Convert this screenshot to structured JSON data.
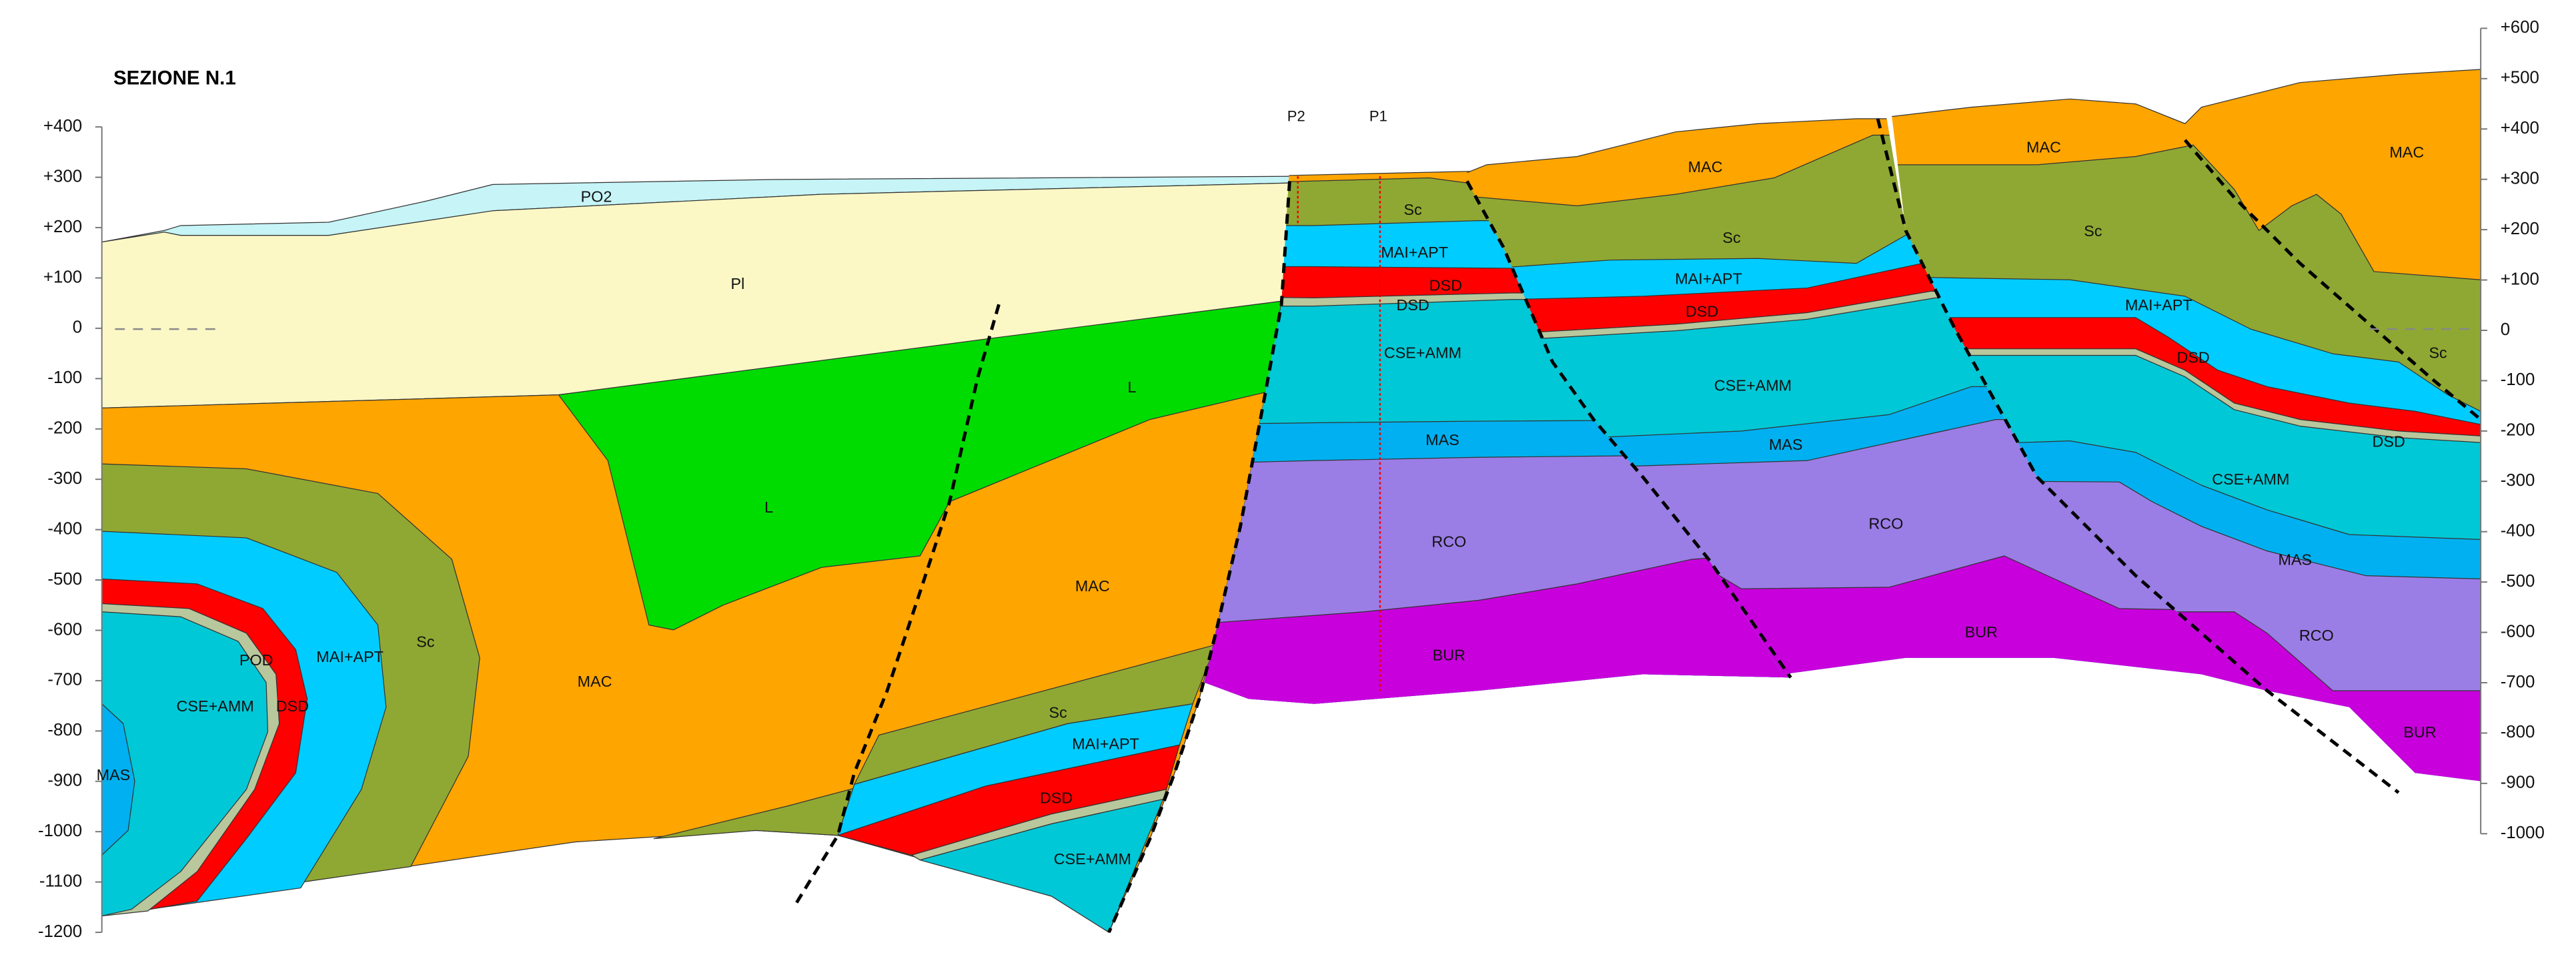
{
  "title": "SEZIONE N.1",
  "left_axis": [
    "+400",
    "+300",
    "+200",
    "+100",
    "0",
    "-100",
    "-200",
    "-300",
    "-400",
    "-500",
    "-600",
    "-700",
    "-800",
    "-900",
    "-1000",
    "-1100",
    "-1200"
  ],
  "right_axis": [
    "+600",
    "+500",
    "+400",
    "+300",
    "+200",
    "+100",
    "0",
    "-100",
    "-200",
    "-300",
    "-400",
    "-500",
    "-600",
    "-700",
    "-800",
    "-900",
    "-1000"
  ],
  "wells": [
    "P2",
    "P1"
  ],
  "units": [
    "PO2",
    "Pl",
    "L",
    "L",
    "MAC",
    "MAC",
    "Sc",
    "MAI+APT",
    "POD",
    "DSD",
    "CSE+AMM",
    "MAS",
    "Sc",
    "MAI+APT",
    "DSD",
    "CSE+AMM",
    "Sc",
    "MAI+APT",
    "DSD",
    "DSD",
    "CSE+AMM",
    "MAS",
    "RCO",
    "BUR",
    "MAC",
    "Sc",
    "MAI+APT",
    "DSD",
    "CSE+AMM",
    "MAS",
    "RCO",
    "BUR",
    "MAC",
    "Sc",
    "MAI+APT",
    "DSD",
    "CSE+AMM",
    "MAS",
    "RCO",
    "BUR",
    "MAC",
    "Sc",
    "DSD"
  ]
}
